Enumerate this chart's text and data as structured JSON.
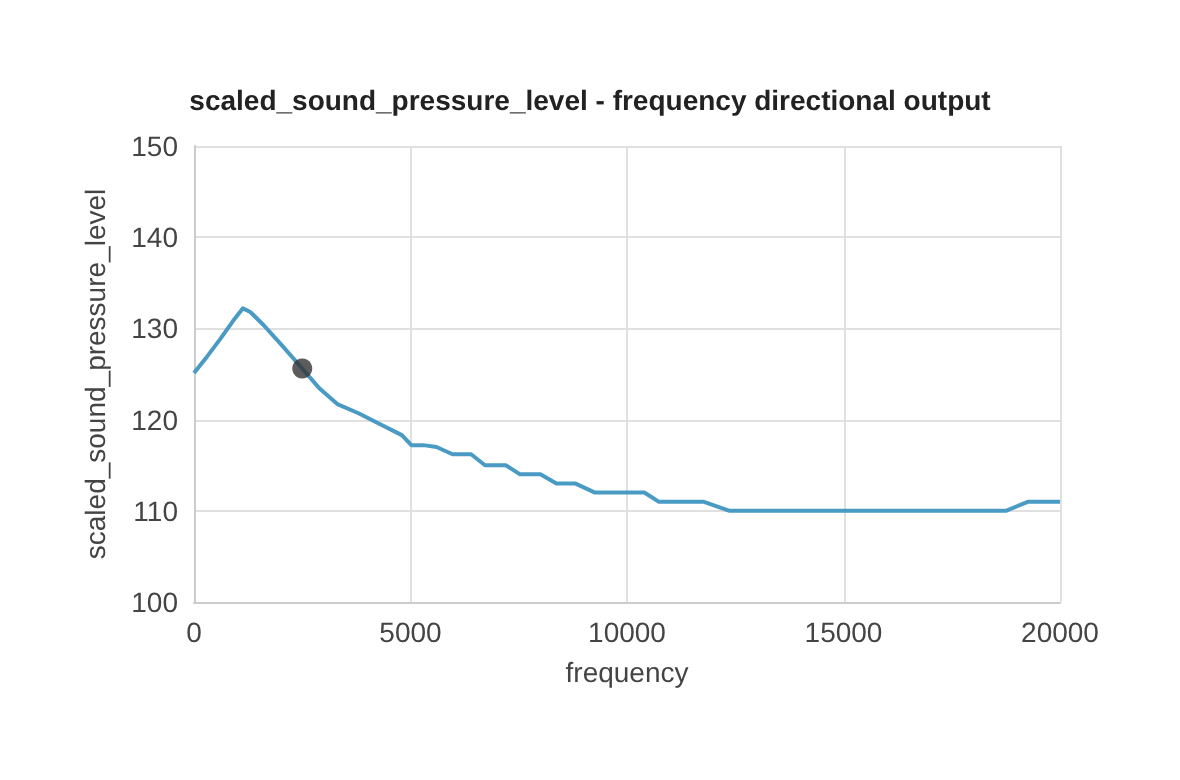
{
  "chart_data": {
    "type": "line",
    "title": "scaled_sound_pressure_level - frequency directional output",
    "xlabel": "frequency",
    "ylabel": "scaled_sound_pressure_level",
    "xlim": [
      0,
      20000
    ],
    "xticks": [
      0,
      5000,
      10000,
      15000,
      20000
    ],
    "ylim": [
      100,
      150
    ],
    "yticks": [
      100,
      110,
      120,
      130,
      140,
      150
    ],
    "grid": true,
    "marker": "none",
    "series": [
      {
        "color": "#4a9bc4",
        "x": [
          0,
          300,
          600,
          900,
          1130,
          1300,
          1600,
          2000,
          2500,
          2900,
          3310,
          3800,
          4300,
          4800,
          5020,
          5300,
          5600,
          5970,
          6400,
          6720,
          7200,
          7530,
          8000,
          8370,
          8800,
          9260,
          9600,
          10400,
          10730,
          11760,
          12370,
          15000,
          18750,
          19270,
          20000
        ],
        "values": [
          125.1,
          126.9,
          128.8,
          130.8,
          132.2,
          131.8,
          130.4,
          128.3,
          125.6,
          123.4,
          121.7,
          120.7,
          119.5,
          118.3,
          117.2,
          117.2,
          117,
          116.2,
          116.2,
          115,
          115,
          114,
          114,
          113,
          113,
          112,
          112,
          112,
          111,
          111,
          110,
          110,
          110,
          111,
          111
        ]
      },
      {
        "type": "scatter",
        "color": "#333333",
        "marker": "circle",
        "x": [
          2500
        ],
        "values": [
          125.6
        ]
      }
    ]
  }
}
